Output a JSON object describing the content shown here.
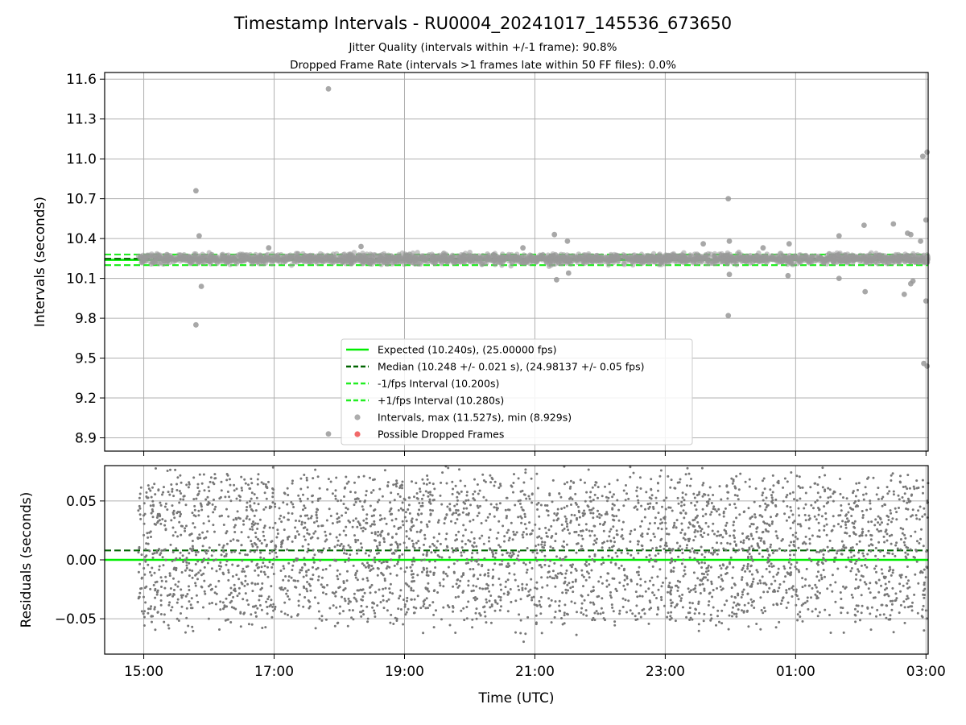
{
  "chart_data": [
    {
      "type": "scatter",
      "title": "Timestamp Intervals - RU0004_20241017_145536_673650",
      "subtitles": [
        "Jitter Quality (intervals within +/-1 frame): 90.8%",
        "Dropped Frame Rate (intervals >1 frames late within 50 FF files): 0.0%"
      ],
      "xlabel": "",
      "ylabel": "Intervals (seconds)",
      "xlim": [
        "14:24",
        "03:02"
      ],
      "ylim": [
        8.8,
        11.65
      ],
      "xticks": [
        "15:00",
        "17:00",
        "19:00",
        "21:00",
        "23:00",
        "01:00",
        "03:00"
      ],
      "yticks": [
        "8.9",
        "9.2",
        "9.5",
        "9.8",
        "10.1",
        "10.4",
        "10.7",
        "11.0",
        "11.3",
        "11.6"
      ],
      "grid": true,
      "legend_position": "lower-center",
      "lines": [
        {
          "name": "Expected (10.240s), (25.00000 fps)",
          "y": 10.24,
          "style": "solid",
          "color": "#00ee00"
        },
        {
          "name": "Median (10.248 +/- 0.021 s), (24.98137 +/- 0.05 fps)",
          "y": 10.248,
          "style": "dashed",
          "color": "#006400"
        },
        {
          "name": "-1/fps Interval (10.200s)",
          "y": 10.2,
          "style": "dashed",
          "color": "#22ee22"
        },
        {
          "name": "+1/fps Interval (10.280s)",
          "y": 10.28,
          "style": "dashed",
          "color": "#22ee22"
        }
      ],
      "series": [
        {
          "name": "Intervals, max (11.527s), min (8.929s)",
          "color": "#999999",
          "band": {
            "center": 10.248,
            "spread": 0.03
          },
          "outliers": [
            {
              "x": "17:50",
              "y": 11.527
            },
            {
              "x": "17:50",
              "y": 8.929
            },
            {
              "x": "15:48",
              "y": 10.76
            },
            {
              "x": "15:51",
              "y": 10.42
            },
            {
              "x": "15:53",
              "y": 10.04
            },
            {
              "x": "15:48",
              "y": 9.75
            },
            {
              "x": "23:58",
              "y": 10.7
            },
            {
              "x": "23:59",
              "y": 10.38
            },
            {
              "x": "23:58",
              "y": 9.82
            },
            {
              "x": "23:59",
              "y": 10.13
            },
            {
              "x": "21:18",
              "y": 10.43
            },
            {
              "x": "21:20",
              "y": 10.09
            },
            {
              "x": "21:30",
              "y": 10.38
            },
            {
              "x": "21:31",
              "y": 10.14
            },
            {
              "x": "01:40",
              "y": 10.42
            },
            {
              "x": "01:40",
              "y": 10.1
            },
            {
              "x": "02:03",
              "y": 10.5
            },
            {
              "x": "02:04",
              "y": 10.0
            },
            {
              "x": "02:30",
              "y": 10.51
            },
            {
              "x": "02:40",
              "y": 9.98
            },
            {
              "x": "02:43",
              "y": 10.44
            },
            {
              "x": "02:46",
              "y": 10.43
            },
            {
              "x": "02:46",
              "y": 10.06
            },
            {
              "x": "02:48",
              "y": 10.08
            },
            {
              "x": "02:55",
              "y": 10.38
            },
            {
              "x": "02:57",
              "y": 11.02
            },
            {
              "x": "03:01",
              "y": 11.05
            },
            {
              "x": "03:00",
              "y": 10.54
            },
            {
              "x": "02:58",
              "y": 9.46
            },
            {
              "x": "03:01",
              "y": 9.44
            },
            {
              "x": "03:00",
              "y": 9.93
            },
            {
              "x": "00:54",
              "y": 10.36
            },
            {
              "x": "00:53",
              "y": 10.12
            },
            {
              "x": "00:30",
              "y": 10.33
            },
            {
              "x": "23:35",
              "y": 10.36
            },
            {
              "x": "20:49",
              "y": 10.33
            },
            {
              "x": "18:20",
              "y": 10.34
            },
            {
              "x": "16:55",
              "y": 10.33
            }
          ]
        },
        {
          "name": "Possible Dropped Frames",
          "color": "#ee4444",
          "values": []
        }
      ]
    },
    {
      "type": "scatter",
      "xlabel": "Time (UTC)",
      "ylabel": "Residuals (seconds)",
      "xlim": [
        "14:24",
        "03:02"
      ],
      "ylim": [
        -0.08,
        0.08
      ],
      "xticks": [
        "15:00",
        "17:00",
        "19:00",
        "21:00",
        "23:00",
        "01:00",
        "03:00"
      ],
      "yticks": [
        "−0.05",
        "0.00",
        "0.05"
      ],
      "grid": true,
      "lines": [
        {
          "y": 0.0,
          "style": "solid",
          "color": "#00ee00"
        },
        {
          "y": 0.008,
          "style": "dashed",
          "color": "#006400"
        }
      ],
      "series": [
        {
          "color": "#777777",
          "band": {
            "center": 0.008,
            "spread": 0.075
          }
        }
      ]
    }
  ]
}
